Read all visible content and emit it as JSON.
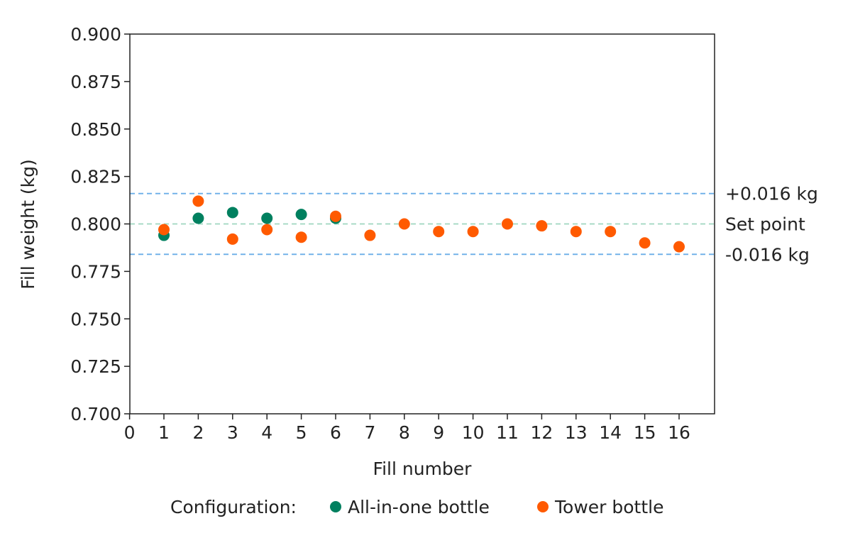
{
  "chart_data": {
    "type": "scatter",
    "xlabel": "Fill number",
    "ylabel": "Fill weight (kg)",
    "xlim": [
      0,
      17
    ],
    "ylim": [
      0.7,
      0.9
    ],
    "xticks": [
      "0",
      "1",
      "2",
      "3",
      "4",
      "5",
      "6",
      "7",
      "8",
      "9",
      "10",
      "11",
      "12",
      "13",
      "14",
      "15",
      "16"
    ],
    "yticks": [
      "0.700",
      "0.725",
      "0.750",
      "0.775",
      "0.800",
      "0.825",
      "0.850",
      "0.875",
      "0.900"
    ],
    "grid": false,
    "legend": {
      "title": "Configuration:",
      "placement": "bottom"
    },
    "series": [
      {
        "name": "All-in-one bottle",
        "color": "#00805f",
        "x": [
          1,
          2,
          3,
          4,
          5,
          6
        ],
        "y": [
          0.794,
          0.803,
          0.806,
          0.803,
          0.805,
          0.803
        ]
      },
      {
        "name": "Tower bottle",
        "color": "#ff5a00",
        "x": [
          1,
          2,
          3,
          4,
          5,
          6,
          7,
          8,
          9,
          10,
          11,
          12,
          13,
          14,
          15,
          16
        ],
        "y": [
          0.797,
          0.812,
          0.792,
          0.797,
          0.793,
          0.804,
          0.794,
          0.8,
          0.796,
          0.796,
          0.8,
          0.799,
          0.796,
          0.796,
          0.79,
          0.788
        ]
      }
    ],
    "reference_lines": [
      {
        "value": 0.816,
        "label": "+0.016 kg",
        "color": "#6aaee8"
      },
      {
        "value": 0.8,
        "label": "Set point",
        "color": "#9fd6c0"
      },
      {
        "value": 0.784,
        "label": "-0.016 kg",
        "color": "#6aaee8"
      }
    ]
  }
}
